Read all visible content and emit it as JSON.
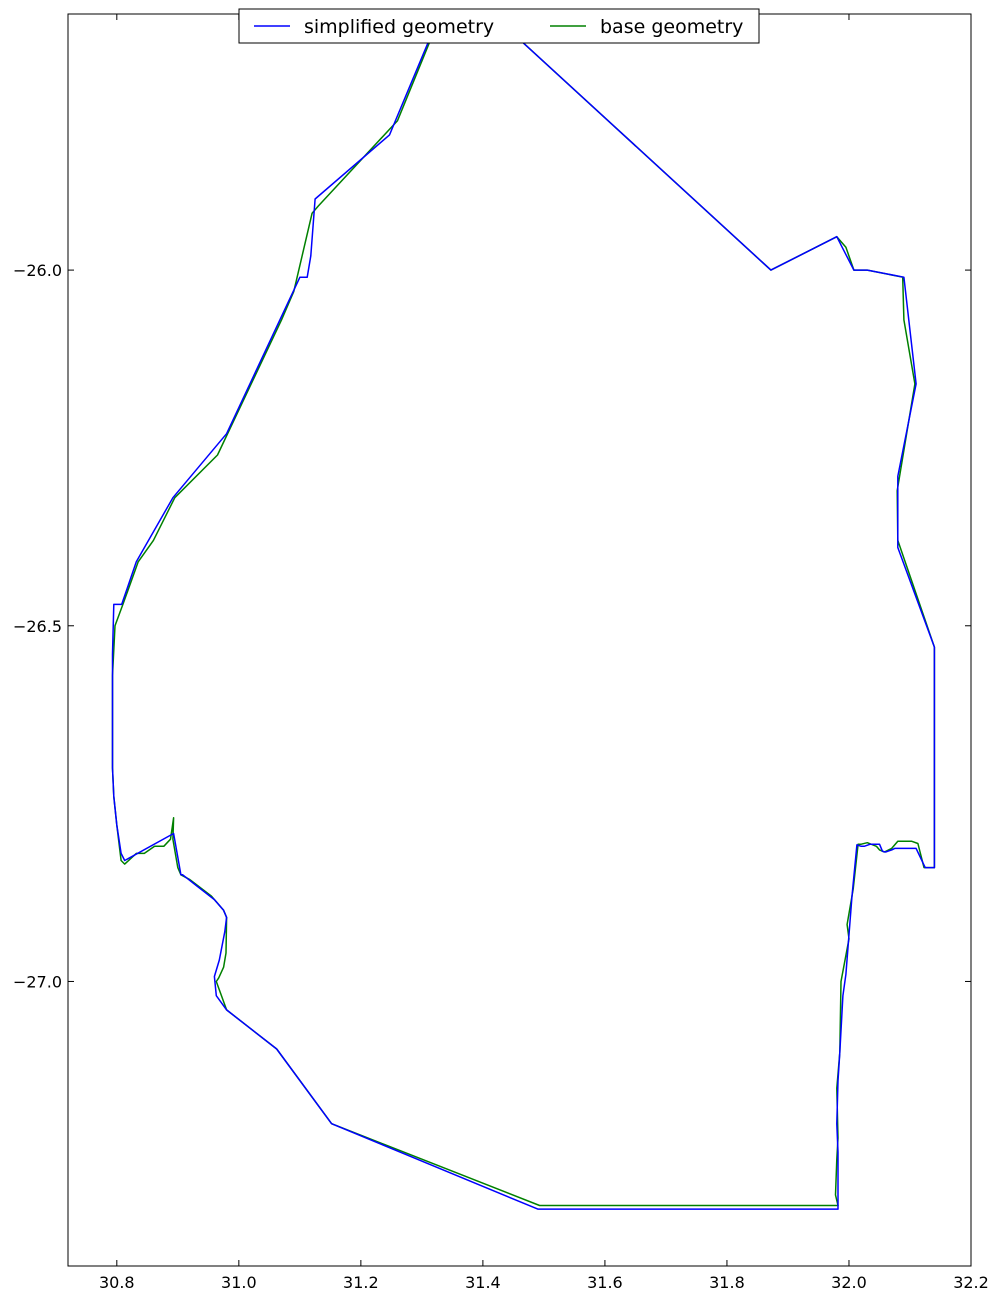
{
  "chart_data": {
    "type": "line",
    "title": "",
    "xlabel": "",
    "ylabel": "",
    "xlim": [
      30.72,
      32.2
    ],
    "ylim": [
      -27.4,
      -25.64
    ],
    "grid": false,
    "legend_position": "top-center",
    "x_ticks": [
      30.8,
      31.0,
      31.2,
      31.4,
      31.6,
      31.8,
      32.0,
      32.2
    ],
    "x_tick_labels": [
      "30.8",
      "31.0",
      "31.2",
      "31.4",
      "31.6",
      "31.8",
      "32.0",
      "32.2"
    ],
    "y_ticks": [
      -26.0,
      -26.5,
      -27.0
    ],
    "y_tick_labels": [
      "−26.0",
      "−26.5",
      "−27.0"
    ],
    "series": [
      {
        "name": "simplified geometry",
        "color": "#0000ff",
        "x": [
          31.417,
          31.872,
          31.98,
          31.99,
          32.008,
          32.03,
          32.09,
          32.11,
          32.08,
          32.08,
          32.14,
          32.14,
          32.125,
          32.11,
          32.1,
          32.075,
          32.07,
          32.06,
          32.055,
          32.05,
          32.035,
          32.025,
          32.02,
          32.013,
          32.005,
          31.995,
          31.99,
          31.985,
          31.982,
          31.98,
          31.982,
          31.982,
          31.49,
          31.152,
          31.062,
          30.98,
          30.963,
          30.96,
          30.968,
          30.977,
          30.98,
          30.975,
          30.96,
          30.93,
          30.908,
          30.905,
          30.893,
          30.813,
          30.807,
          30.8,
          30.795,
          30.793,
          30.793,
          30.795,
          30.808,
          30.832,
          30.892,
          30.98,
          31.1,
          31.112,
          31.118,
          31.125,
          31.247,
          31.318,
          31.417
        ],
        "y": [
          -25.642,
          -26.0,
          -25.953,
          -25.97,
          -26.0,
          -26.0,
          -26.01,
          -26.16,
          -26.29,
          -26.39,
          -26.53,
          -26.84,
          -26.84,
          -26.813,
          -26.813,
          -26.813,
          -26.815,
          -26.818,
          -26.817,
          -26.807,
          -26.807,
          -26.81,
          -26.81,
          -26.808,
          -26.88,
          -26.99,
          -27.02,
          -27.1,
          -27.14,
          -27.2,
          -27.24,
          -27.32,
          -27.32,
          -27.2,
          -27.095,
          -27.04,
          -27.02,
          -26.993,
          -26.97,
          -26.93,
          -26.91,
          -26.9,
          -26.885,
          -26.865,
          -26.85,
          -26.85,
          -26.792,
          -26.83,
          -26.82,
          -26.78,
          -26.74,
          -26.7,
          -26.54,
          -26.47,
          -26.47,
          -26.41,
          -26.32,
          -26.23,
          -26.01,
          -26.01,
          -25.98,
          -25.9,
          -25.81,
          -25.664,
          -25.642
        ]
      },
      {
        "name": "base geometry",
        "color": "#008000",
        "x": [
          31.417,
          31.872,
          31.98,
          31.995,
          32.008,
          32.03,
          32.088,
          32.09,
          32.108,
          32.079,
          32.08,
          32.14,
          32.14,
          32.123,
          32.113,
          32.103,
          32.08,
          32.07,
          32.058,
          32.05,
          32.045,
          32.03,
          32.02,
          32.015,
          32.007,
          31.997,
          32.0,
          31.987,
          31.985,
          31.98,
          31.982,
          31.98,
          31.978,
          31.982,
          31.493,
          31.152,
          31.062,
          30.98,
          30.963,
          30.967,
          30.975,
          30.979,
          30.98,
          30.975,
          30.955,
          30.92,
          30.905,
          30.9,
          30.892,
          30.893,
          30.888,
          30.877,
          30.862,
          30.845,
          30.832,
          30.813,
          30.807,
          30.8,
          30.795,
          30.793,
          30.793,
          30.797,
          30.81,
          30.835,
          30.86,
          30.895,
          30.965,
          31.07,
          31.09,
          31.12,
          31.13,
          31.26,
          31.322,
          31.417
        ],
        "y": [
          -25.642,
          -26.0,
          -25.953,
          -25.968,
          -26.0,
          -26.0,
          -26.01,
          -26.07,
          -26.16,
          -26.31,
          -26.38,
          -26.53,
          -26.84,
          -26.84,
          -26.806,
          -26.803,
          -26.803,
          -26.813,
          -26.818,
          -26.815,
          -26.81,
          -26.805,
          -26.807,
          -26.807,
          -26.87,
          -26.92,
          -26.94,
          -27.0,
          -27.1,
          -27.15,
          -27.22,
          -27.25,
          -27.3,
          -27.315,
          -27.315,
          -27.2,
          -27.095,
          -27.04,
          -27.0,
          -26.995,
          -26.98,
          -26.96,
          -26.91,
          -26.9,
          -26.88,
          -26.857,
          -26.85,
          -26.84,
          -26.8,
          -26.77,
          -26.8,
          -26.81,
          -26.81,
          -26.82,
          -26.82,
          -26.835,
          -26.83,
          -26.78,
          -26.74,
          -26.7,
          -26.57,
          -26.5,
          -26.47,
          -26.41,
          -26.38,
          -26.32,
          -26.26,
          -26.07,
          -26.03,
          -25.92,
          -25.91,
          -25.79,
          -25.66,
          -25.642
        ]
      }
    ]
  }
}
